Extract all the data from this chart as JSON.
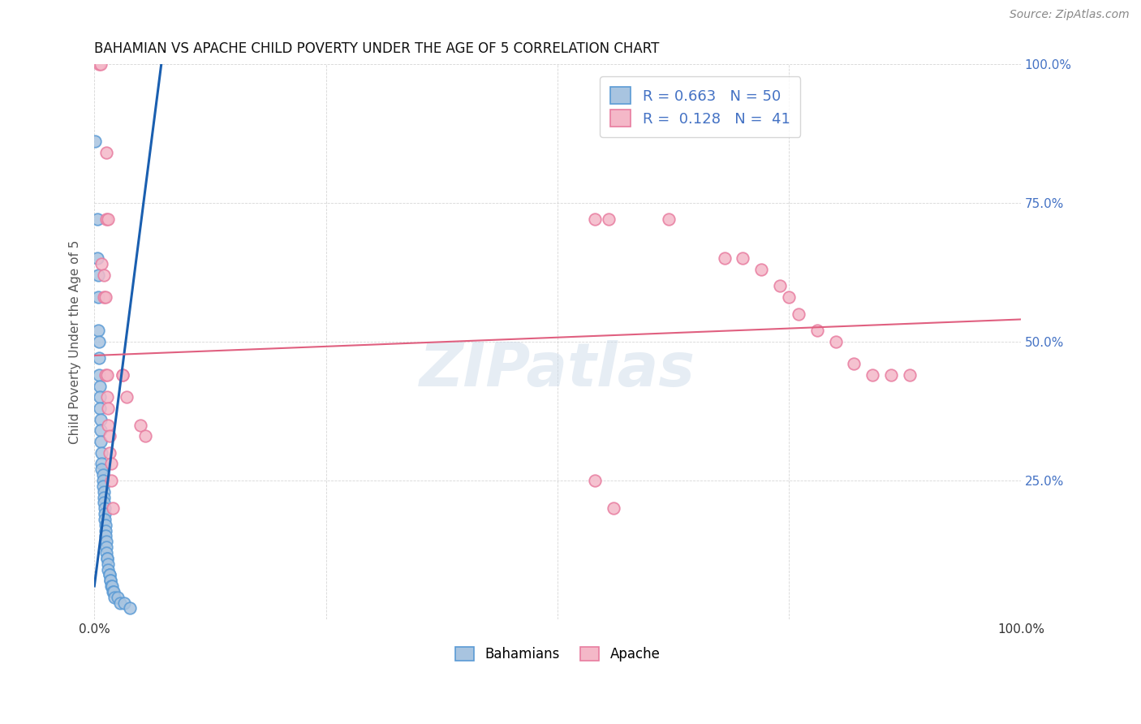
{
  "title": "BAHAMIAN VS APACHE CHILD POVERTY UNDER THE AGE OF 5 CORRELATION CHART",
  "source": "Source: ZipAtlas.com",
  "ylabel": "Child Poverty Under the Age of 5",
  "xlim": [
    0,
    1.0
  ],
  "ylim": [
    0,
    1.0
  ],
  "bahamian_color": "#a8c4e0",
  "bahamian_edge_color": "#5b9bd5",
  "apache_color": "#f4b8c8",
  "apache_edge_color": "#e87da0",
  "bahamian_line_color": "#1a5fb0",
  "apache_line_color": "#e06080",
  "bahamian_R": "0.663",
  "bahamian_N": "50",
  "apache_R": "0.128",
  "apache_N": "41",
  "watermark": "ZIPatlas",
  "bah_line_x0": 0.0,
  "bah_line_y0": 0.06,
  "bah_line_slope": 13.0,
  "apc_line_x0": 0.0,
  "apc_line_y0": 0.475,
  "apc_line_slope": 0.065,
  "bahamian_points": [
    [
      0.001,
      0.86
    ],
    [
      0.003,
      0.72
    ],
    [
      0.003,
      0.65
    ],
    [
      0.004,
      0.62
    ],
    [
      0.004,
      0.58
    ],
    [
      0.004,
      0.52
    ],
    [
      0.005,
      0.5
    ],
    [
      0.005,
      0.47
    ],
    [
      0.005,
      0.44
    ],
    [
      0.006,
      0.42
    ],
    [
      0.006,
      0.4
    ],
    [
      0.006,
      0.38
    ],
    [
      0.007,
      0.36
    ],
    [
      0.007,
      0.34
    ],
    [
      0.007,
      0.32
    ],
    [
      0.008,
      0.3
    ],
    [
      0.008,
      0.28
    ],
    [
      0.008,
      0.27
    ],
    [
      0.009,
      0.26
    ],
    [
      0.009,
      0.25
    ],
    [
      0.009,
      0.24
    ],
    [
      0.01,
      0.23
    ],
    [
      0.01,
      0.22
    ],
    [
      0.01,
      0.21
    ],
    [
      0.011,
      0.2
    ],
    [
      0.011,
      0.19
    ],
    [
      0.011,
      0.18
    ],
    [
      0.012,
      0.17
    ],
    [
      0.012,
      0.16
    ],
    [
      0.012,
      0.15
    ],
    [
      0.013,
      0.14
    ],
    [
      0.013,
      0.13
    ],
    [
      0.013,
      0.12
    ],
    [
      0.014,
      0.11
    ],
    [
      0.014,
      0.11
    ],
    [
      0.015,
      0.1
    ],
    [
      0.015,
      0.09
    ],
    [
      0.016,
      0.08
    ],
    [
      0.016,
      0.08
    ],
    [
      0.017,
      0.07
    ],
    [
      0.017,
      0.07
    ],
    [
      0.018,
      0.06
    ],
    [
      0.019,
      0.06
    ],
    [
      0.02,
      0.05
    ],
    [
      0.021,
      0.05
    ],
    [
      0.022,
      0.04
    ],
    [
      0.025,
      0.04
    ],
    [
      0.028,
      0.03
    ],
    [
      0.032,
      0.03
    ],
    [
      0.038,
      0.02
    ]
  ],
  "apache_points": [
    [
      0.005,
      1.0
    ],
    [
      0.007,
      1.0
    ],
    [
      0.013,
      0.84
    ],
    [
      0.013,
      0.72
    ],
    [
      0.015,
      0.72
    ],
    [
      0.008,
      0.64
    ],
    [
      0.01,
      0.62
    ],
    [
      0.01,
      0.58
    ],
    [
      0.012,
      0.58
    ],
    [
      0.012,
      0.44
    ],
    [
      0.014,
      0.44
    ],
    [
      0.014,
      0.4
    ],
    [
      0.015,
      0.38
    ],
    [
      0.015,
      0.35
    ],
    [
      0.016,
      0.33
    ],
    [
      0.016,
      0.3
    ],
    [
      0.018,
      0.28
    ],
    [
      0.018,
      0.25
    ],
    [
      0.02,
      0.2
    ],
    [
      0.03,
      0.44
    ],
    [
      0.03,
      0.44
    ],
    [
      0.035,
      0.4
    ],
    [
      0.05,
      0.35
    ],
    [
      0.055,
      0.33
    ],
    [
      0.54,
      0.72
    ],
    [
      0.555,
      0.72
    ],
    [
      0.62,
      0.72
    ],
    [
      0.68,
      0.65
    ],
    [
      0.7,
      0.65
    ],
    [
      0.72,
      0.63
    ],
    [
      0.74,
      0.6
    ],
    [
      0.75,
      0.58
    ],
    [
      0.76,
      0.55
    ],
    [
      0.78,
      0.52
    ],
    [
      0.8,
      0.5
    ],
    [
      0.82,
      0.46
    ],
    [
      0.84,
      0.44
    ],
    [
      0.86,
      0.44
    ],
    [
      0.88,
      0.44
    ],
    [
      0.54,
      0.25
    ],
    [
      0.56,
      0.2
    ]
  ]
}
